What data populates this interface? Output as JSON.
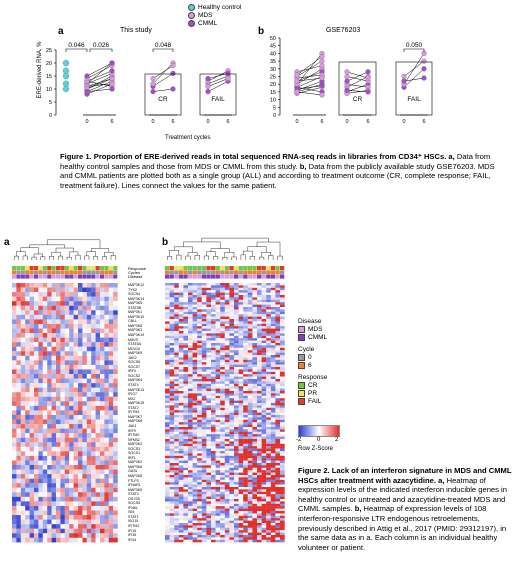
{
  "top_legend": [
    {
      "label": "Healthy control",
      "color": "#5fd0d4"
    },
    {
      "label": "MDS",
      "color": "#d99be0"
    },
    {
      "label": "CMML",
      "color": "#a64dcc"
    }
  ],
  "panel_a": {
    "letter": "a",
    "title": "This study",
    "ylabel": "ERE-derived RNA, %",
    "xlabel": "Treatment cycles",
    "yticks": [
      "0",
      "5",
      "10",
      "15",
      "20",
      "25"
    ],
    "pvalues": [
      "0.046",
      "0.026",
      "0.048"
    ],
    "groups": [
      "CR",
      "FAIL"
    ],
    "xticks": [
      "0",
      "6",
      "0",
      "6",
      "0",
      "6"
    ]
  },
  "panel_b": {
    "letter": "b",
    "title": "GSE76203",
    "yticks": [
      "0",
      "5",
      "10",
      "15",
      "20",
      "25",
      "30",
      "35",
      "40",
      "45",
      "50"
    ],
    "pvalues": [
      "0.050"
    ],
    "groups": [
      "CR",
      "FAIL"
    ],
    "xticks": [
      "0",
      "6",
      "0",
      "6",
      "0",
      "6"
    ]
  },
  "chart_data": [
    {
      "type": "scatter",
      "title": "This study",
      "ylabel": "ERE-derived RNA, %",
      "xlabel": "Treatment cycles",
      "ylim": [
        0,
        25
      ],
      "groups": [
        "",
        "CR",
        "FAIL"
      ],
      "healthy": [
        20,
        17,
        15,
        12,
        10
      ],
      "all_pairs": [
        [
          8,
          12
        ],
        [
          9,
          13
        ],
        [
          10,
          15
        ],
        [
          11,
          14
        ],
        [
          12,
          16
        ],
        [
          12,
          20
        ],
        [
          13,
          17
        ],
        [
          13,
          11
        ],
        [
          14,
          19
        ],
        [
          15,
          20
        ],
        [
          11,
          12
        ],
        [
          10,
          14
        ],
        [
          9,
          10
        ]
      ],
      "cr_pairs": [
        [
          11,
          16
        ],
        [
          12,
          20
        ],
        [
          14,
          19
        ],
        [
          9,
          10
        ]
      ],
      "fail_pairs": [
        [
          9,
          13
        ],
        [
          12,
          15
        ],
        [
          13,
          17
        ],
        [
          14,
          16
        ],
        [
          11,
          14
        ]
      ],
      "pvalues": [
        "0.046",
        "0.026",
        "0.048"
      ]
    },
    {
      "type": "scatter",
      "title": "GSE76203",
      "ylim": [
        0,
        50
      ],
      "groups": [
        "",
        "CR",
        "FAIL"
      ],
      "all_pairs": [
        [
          15,
          20
        ],
        [
          18,
          25
        ],
        [
          20,
          30
        ],
        [
          22,
          28
        ],
        [
          25,
          35
        ],
        [
          14,
          18
        ],
        [
          16,
          22
        ],
        [
          24,
          26
        ],
        [
          28,
          32
        ],
        [
          18,
          15
        ],
        [
          20,
          40
        ],
        [
          22,
          24
        ],
        [
          17,
          19
        ],
        [
          26,
          38
        ],
        [
          15,
          13
        ]
      ],
      "cr_pairs": [
        [
          15,
          20
        ],
        [
          18,
          25
        ],
        [
          20,
          18
        ],
        [
          22,
          28
        ],
        [
          25,
          22
        ],
        [
          14,
          16
        ],
        [
          16,
          15
        ],
        [
          28,
          24
        ]
      ],
      "fail_pairs": [
        [
          18,
          30
        ],
        [
          20,
          40
        ],
        [
          25,
          35
        ],
        [
          22,
          24
        ]
      ],
      "pvalues": [
        "0.050"
      ]
    }
  ],
  "figure1_caption": {
    "bold": "Figure 1. Proportion of ERE-derived reads in total sequenced RNA-seq reads in libraries from CD34⁺ HSCs. a,",
    "text": " Data from healthy control samples and those from MDS or CMML from this study. ",
    "b_bold": "b,",
    "text2": " Data from the publicly available study GSE76203. MDS and CMML patients are plotted both as a single group (ALL) and according to treatment outcome (CR, complete response; FAIL, treatment failure). Lines connect the values for the same patient."
  },
  "heatmap_a": {
    "letter": "a",
    "row_labels_annot": [
      "Response",
      "Cycles",
      "Disease"
    ],
    "genes": [
      "MAP3K12",
      "TYK2",
      "SOCS4",
      "MAP3K14",
      "MAP3K5",
      "STAT5B",
      "MAP3K1",
      "MAP3K10",
      "CBLL",
      "MAP3K8",
      "MAP3K3",
      "MAP3K19",
      "MAVS",
      "STAT5A",
      "MDV10",
      "MAP3K9",
      "JAK2",
      "SOCS6",
      "SOCS7",
      "IRF3",
      "SOCS2",
      "MAP3K4",
      "STAT4",
      "MAP3K13",
      "IFIG7",
      "MX2",
      "MAP3K15",
      "STAT2",
      "IFITM3",
      "MAP3K7",
      "MAP3K6",
      "JAK1",
      "IRF9",
      "IFITM2",
      "NFKB2",
      "MAP3K2",
      "SOCS3",
      "SOCS1",
      "IRF1",
      "MAP3K2",
      "MAP3K6",
      "OASL",
      "MAP3K8",
      "FTLP3",
      "IFNAR1",
      "MAP3K5",
      "STAT3",
      "OS-IS5",
      "SOCS5",
      "IFNKL",
      "ISI5",
      "STAT1",
      "ISG15",
      "IFITM1",
      "IFI16",
      "IFI35",
      "IFI44"
    ]
  },
  "heatmap_b": {
    "letter": "b"
  },
  "heatmap_legend": {
    "disease_title": "Disease",
    "disease": [
      {
        "label": "MDS",
        "color": "#d99be0"
      },
      {
        "label": "CMML",
        "color": "#7b3fc0"
      }
    ],
    "cycle_title": "Cycle",
    "cycle": [
      {
        "label": "0",
        "color": "#999999"
      },
      {
        "label": "6",
        "color": "#e6862c"
      }
    ],
    "response_title": "Response",
    "response": [
      {
        "label": "CR",
        "color": "#6ec84a"
      },
      {
        "label": "PR",
        "color": "#e8e85a"
      },
      {
        "label": "FAIL",
        "color": "#e23b2a"
      }
    ],
    "scale_ticks": [
      "-2",
      "0",
      "2"
    ],
    "scale_label": "Row Z-Score"
  },
  "figure2_caption": {
    "bold": "Figure 2. Lack of an interferon signature in MDS and CMML HSCs after treatment with azacytidine.",
    "a_bold": "a,",
    "text_a": " Heatmap of expression levels of the indicated interferon inducible genes in healthy control or untreated and azacytidine-treated MDS and CMML samples. ",
    "b_bold": "b,",
    "text_b": " Heatmap of expression levels of 108 interferon-responsive LTR endogenous retroelements, previously described in Attig et al., 2017 (PMID: 29312197), in the same data as in a. Each column is an individual healthy volunteer or patient."
  }
}
